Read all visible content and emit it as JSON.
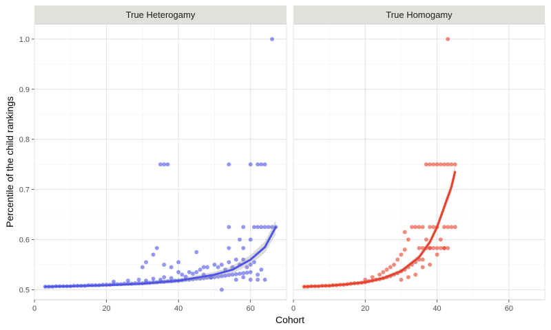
{
  "chart_data": {
    "type": "scatter",
    "xlabel": "Cohort",
    "ylabel": "Percentile of the child rankings",
    "xlim": [
      0,
      70
    ],
    "ylim": [
      0.48,
      1.03
    ],
    "x_ticks": [
      0,
      20,
      40,
      60
    ],
    "y_ticks": [
      0.5,
      0.6,
      0.7,
      0.8,
      0.9,
      1.0
    ],
    "y_tick_labels": [
      "0.5",
      "0.6",
      "0.7",
      "0.8",
      "0.9",
      "1.0"
    ],
    "grid": true,
    "legend": "none",
    "panels": [
      {
        "title": "True Heterogamy",
        "color": "#4f54e8",
        "trend": [
          [
            3,
            0.506
          ],
          [
            10,
            0.507
          ],
          [
            20,
            0.509
          ],
          [
            30,
            0.512
          ],
          [
            40,
            0.518
          ],
          [
            50,
            0.53
          ],
          [
            55,
            0.54
          ],
          [
            60,
            0.56
          ],
          [
            64,
            0.585
          ],
          [
            67,
            0.625
          ]
        ],
        "points": [
          [
            3,
            0.506
          ],
          [
            4,
            0.506
          ],
          [
            5,
            0.506
          ],
          [
            6,
            0.507
          ],
          [
            7,
            0.507
          ],
          [
            8,
            0.507
          ],
          [
            9,
            0.507
          ],
          [
            10,
            0.507
          ],
          [
            11,
            0.508
          ],
          [
            12,
            0.508
          ],
          [
            13,
            0.508
          ],
          [
            14,
            0.508
          ],
          [
            15,
            0.509
          ],
          [
            16,
            0.509
          ],
          [
            17,
            0.509
          ],
          [
            18,
            0.509
          ],
          [
            19,
            0.51
          ],
          [
            20,
            0.51
          ],
          [
            21,
            0.51
          ],
          [
            22,
            0.511
          ],
          [
            23,
            0.511
          ],
          [
            24,
            0.511
          ],
          [
            25,
            0.512
          ],
          [
            26,
            0.512
          ],
          [
            27,
            0.512
          ],
          [
            28,
            0.513
          ],
          [
            29,
            0.513
          ],
          [
            30,
            0.513
          ],
          [
            31,
            0.514
          ],
          [
            32,
            0.514
          ],
          [
            33,
            0.515
          ],
          [
            34,
            0.515
          ],
          [
            35,
            0.516
          ],
          [
            36,
            0.516
          ],
          [
            37,
            0.517
          ],
          [
            38,
            0.517
          ],
          [
            39,
            0.518
          ],
          [
            40,
            0.518
          ],
          [
            41,
            0.519
          ],
          [
            42,
            0.52
          ],
          [
            43,
            0.52
          ],
          [
            44,
            0.521
          ],
          [
            45,
            0.522
          ],
          [
            46,
            0.522
          ],
          [
            47,
            0.523
          ],
          [
            48,
            0.524
          ],
          [
            49,
            0.524
          ],
          [
            50,
            0.525
          ],
          [
            51,
            0.526
          ],
          [
            52,
            0.527
          ],
          [
            53,
            0.528
          ],
          [
            54,
            0.529
          ],
          [
            55,
            0.53
          ],
          [
            56,
            0.531
          ],
          [
            57,
            0.532
          ],
          [
            58,
            0.533
          ],
          [
            59,
            0.534
          ],
          [
            60,
            0.535
          ],
          [
            22,
            0.516
          ],
          [
            26,
            0.518
          ],
          [
            29,
            0.52
          ],
          [
            31,
            0.518
          ],
          [
            33,
            0.522
          ],
          [
            35,
            0.52
          ],
          [
            36,
            0.525
          ],
          [
            38,
            0.523
          ],
          [
            40,
            0.535
          ],
          [
            41,
            0.53
          ],
          [
            42,
            0.526
          ],
          [
            43,
            0.535
          ],
          [
            44,
            0.532
          ],
          [
            45,
            0.535
          ],
          [
            46,
            0.54
          ],
          [
            47,
            0.53
          ],
          [
            48,
            0.545
          ],
          [
            49,
            0.525
          ],
          [
            50,
            0.55
          ],
          [
            51,
            0.545
          ],
          [
            52,
            0.55
          ],
          [
            53,
            0.54
          ],
          [
            54,
            0.555
          ],
          [
            55,
            0.545
          ],
          [
            56,
            0.56
          ],
          [
            57,
            0.55
          ],
          [
            58,
            0.56
          ],
          [
            59,
            0.545
          ],
          [
            60,
            0.55
          ],
          [
            61,
            0.555
          ],
          [
            62,
            0.53
          ],
          [
            63,
            0.54
          ],
          [
            64,
            0.52
          ],
          [
            65,
            0.625
          ],
          [
            66,
            0.625
          ],
          [
            67,
            0.625
          ],
          [
            62,
            0.52
          ],
          [
            60,
            0.52
          ],
          [
            58,
            0.525
          ],
          [
            56,
            0.52
          ],
          [
            31,
            0.555
          ],
          [
            33,
            0.57
          ],
          [
            34,
            0.583
          ],
          [
            30,
            0.545
          ],
          [
            36,
            0.55
          ],
          [
            38,
            0.545
          ],
          [
            40,
            0.555
          ],
          [
            45,
            0.575
          ],
          [
            47,
            0.545
          ],
          [
            52,
            0.5
          ],
          [
            54,
            0.583
          ],
          [
            57,
            0.6
          ],
          [
            58,
            0.583
          ],
          [
            60,
            0.6
          ],
          [
            54,
            0.625
          ],
          [
            58,
            0.625
          ],
          [
            61,
            0.625
          ],
          [
            62,
            0.625
          ],
          [
            63,
            0.625
          ],
          [
            64,
            0.625
          ],
          [
            35,
            0.75
          ],
          [
            36,
            0.75
          ],
          [
            37,
            0.75
          ],
          [
            54,
            0.75
          ],
          [
            60,
            0.75
          ],
          [
            62,
            0.75
          ],
          [
            63,
            0.75
          ],
          [
            64,
            0.75
          ],
          [
            66,
            1.0
          ]
        ]
      },
      {
        "title": "True Homogamy",
        "color": "#e8402a",
        "trend": [
          [
            3,
            0.506
          ],
          [
            10,
            0.508
          ],
          [
            15,
            0.511
          ],
          [
            20,
            0.515
          ],
          [
            25,
            0.523
          ],
          [
            30,
            0.537
          ],
          [
            35,
            0.565
          ],
          [
            38,
            0.595
          ],
          [
            40,
            0.625
          ],
          [
            42,
            0.665
          ],
          [
            44,
            0.705
          ],
          [
            45,
            0.735
          ]
        ],
        "points": [
          [
            3,
            0.506
          ],
          [
            4,
            0.506
          ],
          [
            5,
            0.507
          ],
          [
            6,
            0.507
          ],
          [
            7,
            0.507
          ],
          [
            8,
            0.508
          ],
          [
            9,
            0.508
          ],
          [
            10,
            0.508
          ],
          [
            11,
            0.509
          ],
          [
            12,
            0.509
          ],
          [
            13,
            0.51
          ],
          [
            14,
            0.51
          ],
          [
            15,
            0.511
          ],
          [
            16,
            0.512
          ],
          [
            17,
            0.513
          ],
          [
            18,
            0.513
          ],
          [
            19,
            0.514
          ],
          [
            20,
            0.515
          ],
          [
            21,
            0.517
          ],
          [
            22,
            0.518
          ],
          [
            23,
            0.52
          ],
          [
            24,
            0.521
          ],
          [
            25,
            0.523
          ],
          [
            26,
            0.525
          ],
          [
            27,
            0.527
          ],
          [
            28,
            0.53
          ],
          [
            29,
            0.533
          ],
          [
            30,
            0.537
          ],
          [
            31,
            0.54
          ],
          [
            32,
            0.545
          ],
          [
            33,
            0.55
          ],
          [
            34,
            0.555
          ],
          [
            35,
            0.56
          ],
          [
            20,
            0.52
          ],
          [
            22,
            0.525
          ],
          [
            24,
            0.53
          ],
          [
            25,
            0.535
          ],
          [
            26,
            0.54
          ],
          [
            27,
            0.545
          ],
          [
            28,
            0.55
          ],
          [
            29,
            0.56
          ],
          [
            30,
            0.57
          ],
          [
            31,
            0.58
          ],
          [
            32,
            0.6
          ],
          [
            33,
            0.625
          ],
          [
            34,
            0.625
          ],
          [
            35,
            0.583
          ],
          [
            36,
            0.56
          ],
          [
            37,
            0.6
          ],
          [
            38,
            0.583
          ],
          [
            39,
            0.625
          ],
          [
            40,
            0.625
          ],
          [
            41,
            0.6
          ],
          [
            30,
            0.52
          ],
          [
            32,
            0.525
          ],
          [
            34,
            0.53
          ],
          [
            36,
            0.545
          ],
          [
            38,
            0.55
          ],
          [
            40,
            0.57
          ],
          [
            42,
            0.583
          ],
          [
            43,
            0.625
          ],
          [
            44,
            0.625
          ],
          [
            45,
            0.625
          ],
          [
            36,
            0.583
          ],
          [
            37,
            0.583
          ],
          [
            38,
            0.583
          ],
          [
            39,
            0.583
          ],
          [
            40,
            0.583
          ],
          [
            41,
            0.583
          ],
          [
            42,
            0.583
          ],
          [
            43,
            0.583
          ],
          [
            42,
            0.625
          ],
          [
            38,
            0.625
          ],
          [
            31,
            0.615
          ],
          [
            35,
            0.625
          ],
          [
            36,
            0.625
          ],
          [
            37,
            0.75
          ],
          [
            38,
            0.75
          ],
          [
            39,
            0.75
          ],
          [
            40,
            0.75
          ],
          [
            41,
            0.75
          ],
          [
            42,
            0.75
          ],
          [
            43,
            0.75
          ],
          [
            44,
            0.75
          ],
          [
            45,
            0.75
          ],
          [
            43,
            1.0
          ]
        ]
      }
    ]
  }
}
